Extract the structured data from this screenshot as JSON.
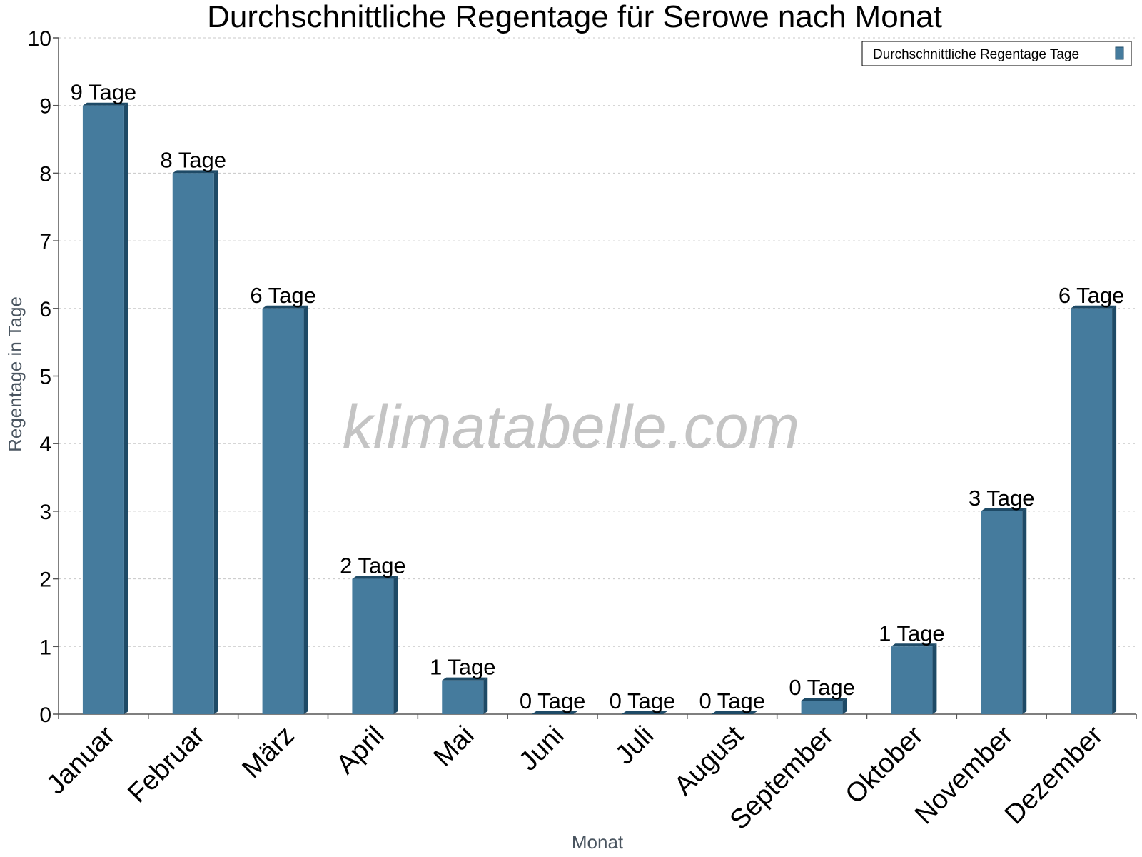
{
  "chart_data": {
    "type": "bar",
    "title": "Durchschnittliche Regentage für Serowe nach Monat",
    "xlabel": "Monat",
    "ylabel": "Regentage in Tage",
    "ylim": [
      0,
      10
    ],
    "yticks": [
      0,
      1,
      2,
      3,
      4,
      5,
      6,
      7,
      8,
      9,
      10
    ],
    "grid": true,
    "legend_position": "top-right",
    "categories": [
      "Januar",
      "Februar",
      "März",
      "April",
      "Mai",
      "Juni",
      "Juli",
      "August",
      "September",
      "Oktober",
      "November",
      "Dezember"
    ],
    "series": [
      {
        "name": "Durchschnittliche Regentage Tage",
        "color": "#457b9d",
        "values": [
          9,
          8,
          6,
          2,
          0.5,
          0,
          0,
          0,
          0.2,
          1,
          3,
          6
        ],
        "labels": [
          "9 Tage",
          "8 Tage",
          "6 Tage",
          "2 Tage",
          "1 Tage",
          "0 Tage",
          "0 Tage",
          "0 Tage",
          "0 Tage",
          "1 Tage",
          "3 Tage",
          "6 Tage"
        ]
      }
    ]
  },
  "watermark": "klimatabelle.com"
}
